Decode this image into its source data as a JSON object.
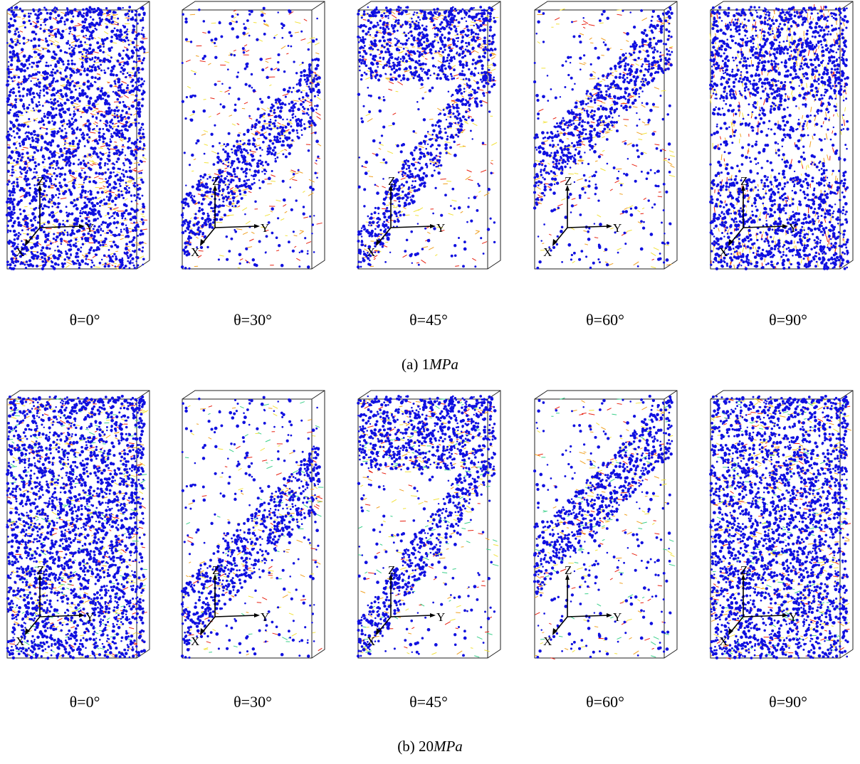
{
  "figure": {
    "rows": [
      {
        "caption_label": "(a)",
        "caption_value": "1",
        "caption_unit": "MPa",
        "panels": [
          {
            "theta": "θ=0°",
            "band": "horizontal-bottom"
          },
          {
            "theta": "θ=30°",
            "band": "diagonal-30"
          },
          {
            "theta": "θ=45°",
            "band": "diagonal-45"
          },
          {
            "theta": "θ=60°",
            "band": "diagonal-60"
          },
          {
            "theta": "θ=90°",
            "band": "vertical"
          }
        ]
      },
      {
        "caption_label": "(b)",
        "caption_value": "20",
        "caption_unit": "MPa",
        "panels": [
          {
            "theta": "θ=0°",
            "band": "dense"
          },
          {
            "theta": "θ=30°",
            "band": "diagonal-30"
          },
          {
            "theta": "θ=45°",
            "band": "diagonal-45"
          },
          {
            "theta": "θ=60°",
            "band": "diagonal-60"
          },
          {
            "theta": "θ=90°",
            "band": "dense"
          }
        ]
      }
    ],
    "axis_labels": {
      "x": "X",
      "y": "Y",
      "z": "Z"
    },
    "colors": {
      "particle": "#1010e0",
      "crack_red": "#e82010",
      "crack_orange": "#f0a020",
      "crack_yellow": "#f2e23a",
      "crack_green": "#3ad08a",
      "frame": "#222222",
      "axis": "#000000"
    }
  }
}
